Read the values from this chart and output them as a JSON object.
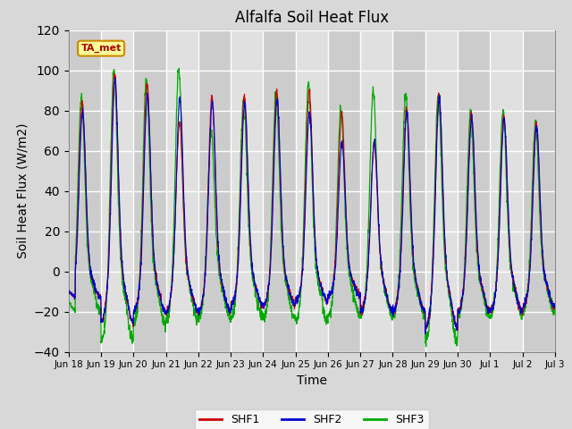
{
  "title": "Alfalfa Soil Heat Flux",
  "xlabel": "Time",
  "ylabel": "Soil Heat Flux (W/m2)",
  "ylim": [
    -40,
    120
  ],
  "yticks": [
    -40,
    -20,
    0,
    20,
    40,
    60,
    80,
    100,
    120
  ],
  "annotation_text": "TA_met",
  "annotation_box_facecolor": "#ffff99",
  "annotation_box_edgecolor": "#cc8800",
  "annotation_text_color": "#aa0000",
  "line_colors": [
    "#cc0000",
    "#0000cc",
    "#00aa00"
  ],
  "line_labels": [
    "SHF1",
    "SHF2",
    "SHF3"
  ],
  "background_color": "#d8d8d8",
  "plot_bg_color": "#d8d8d8",
  "grid_color": "#ffffff",
  "xtick_labels": [
    "Jun 18",
    "Jun 19",
    "Jun 20",
    "Jun 21",
    "Jun 22",
    "Jun 23",
    "Jun 24",
    "Jun 25",
    "Jun 26",
    "Jun 27",
    "Jun 28",
    "Jun 29",
    "Jun 30",
    "Jul 1",
    "Jul 2",
    "Jul 3"
  ],
  "legend_labels": [
    "SHF1",
    "SHF2",
    "SHF3"
  ],
  "legend_colors": [
    "#cc0000",
    "#0000cc",
    "#00aa00"
  ],
  "day_peaks_shf1": [
    85,
    101,
    95,
    75,
    88,
    88,
    90,
    91,
    80,
    65,
    82,
    90,
    79,
    79,
    75
  ],
  "day_peaks_shf2": [
    80,
    96,
    88,
    87,
    86,
    85,
    87,
    80,
    65,
    65,
    80,
    88,
    77,
    77,
    73
  ],
  "day_peaks_shf3": [
    88,
    104,
    97,
    103,
    72,
    88,
    90,
    95,
    82,
    92,
    90,
    90,
    81,
    81,
    75
  ],
  "day_troughs_shf1": [
    -13,
    -25,
    -20,
    -20,
    -20,
    -17,
    -17,
    -15,
    -12,
    -20,
    -20,
    -28,
    -20,
    -20,
    -18
  ],
  "day_troughs_shf2": [
    -13,
    -25,
    -20,
    -20,
    -20,
    -17,
    -17,
    -15,
    -12,
    -20,
    -20,
    -28,
    -20,
    -20,
    -18
  ],
  "day_troughs_shf3": [
    -20,
    -35,
    -26,
    -24,
    -24,
    -23,
    -24,
    -25,
    -22,
    -22,
    -22,
    -35,
    -22,
    -22,
    -20
  ]
}
